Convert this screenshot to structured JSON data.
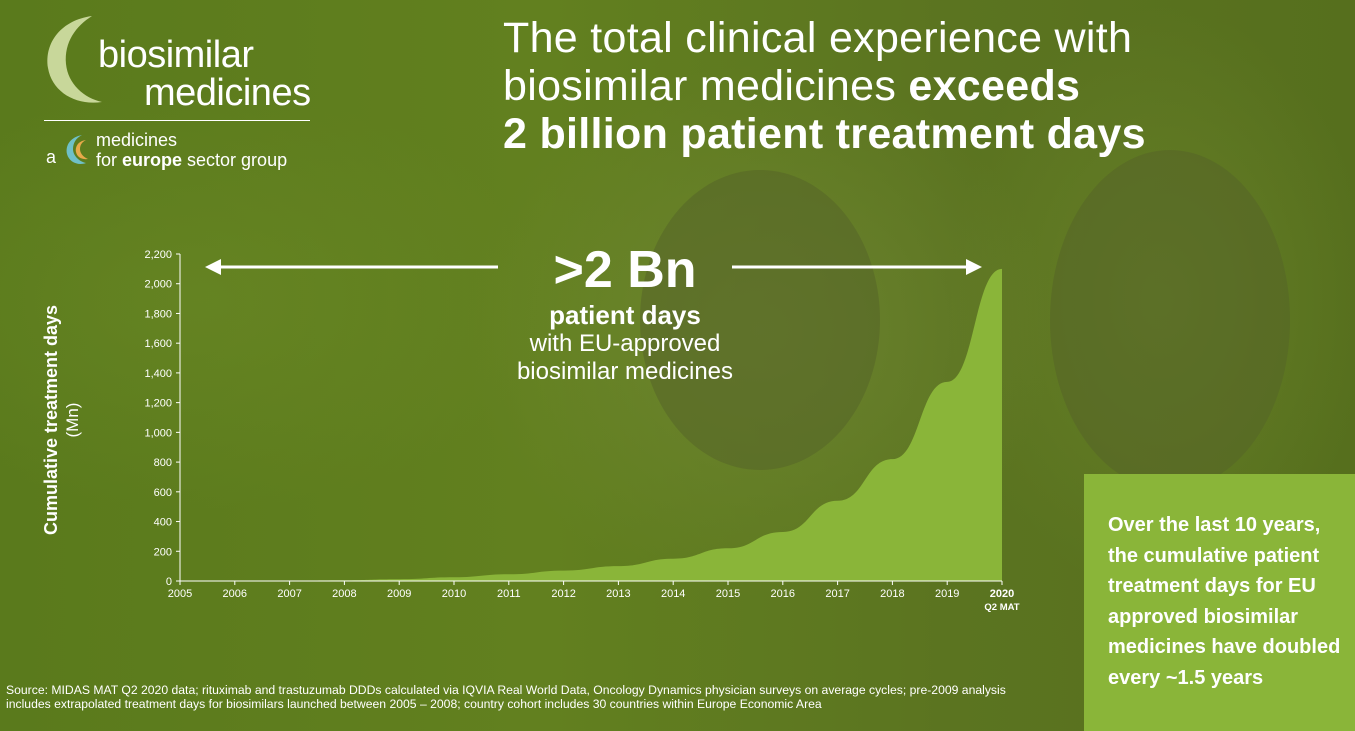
{
  "logo": {
    "word1": "biosimilar",
    "word2": "medicines",
    "prefix": "a",
    "sub1": "medicines",
    "sub2_pre": "for ",
    "sub2_bold": "europe",
    "sub2_post": " sector group"
  },
  "headline": {
    "line1": "The total clinical experience with",
    "line2_normal": "biosimilar medicines ",
    "line2_bold": "exceeds",
    "line3": "2 billion patient treatment days"
  },
  "highlight": {
    "big": ">2 Bn",
    "bold": "patient days",
    "line1": "with EU-approved",
    "line2": "biosimilar medicines"
  },
  "callout": "Over the last 10 years, the cumulative patient treatment days for EU approved biosimilar medicines have doubled every ~1.5 years",
  "source": "Source: MIDAS MAT Q2 2020 data; rituximab and trastuzumab DDDs calculated via IQVIA Real World Data, Oncology Dynamics physician surveys on average cycles; pre-2009 analysis includes extrapolated treatment days for biosimilars launched between 2005 – 2008; country cohort includes 30 countries within Europe Economic Area",
  "colors": {
    "background": "#5f7a1e",
    "area_fill": "#8ab539",
    "callout_bg": "#8ab539",
    "text": "#ffffff"
  },
  "chart_data": {
    "type": "area",
    "ylabel": "Cumulative treatment days",
    "ylabel_unit": "(Mn)",
    "ylim": [
      0,
      2200
    ],
    "yticks": [
      "0",
      "200",
      "400",
      "600",
      "800",
      "1,000",
      "1,200",
      "1,400",
      "1,600",
      "1,800",
      "2,000",
      "2,200"
    ],
    "ytick_values": [
      0,
      200,
      400,
      600,
      800,
      1000,
      1200,
      1400,
      1600,
      1800,
      2000,
      2200
    ],
    "categories": [
      "2005",
      "2006",
      "2007",
      "2008",
      "2009",
      "2010",
      "2011",
      "2012",
      "2013",
      "2014",
      "2015",
      "2016",
      "2017",
      "2018",
      "2019",
      "2020"
    ],
    "last_category_sublabel": "Q2 MAT",
    "values": [
      0,
      1,
      2,
      5,
      12,
      25,
      45,
      70,
      100,
      150,
      220,
      330,
      540,
      820,
      1340,
      2100
    ],
    "grid": false
  }
}
